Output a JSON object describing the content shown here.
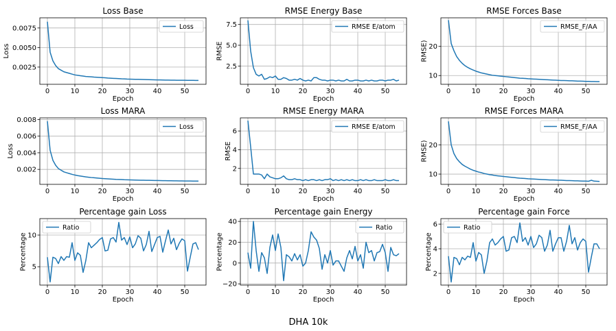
{
  "figure": {
    "suptitle": "DHA 10k"
  },
  "colors": {
    "line": "#1f77b4",
    "grid": "#b0b0b0",
    "axis": "#000000"
  },
  "chart_data": [
    {
      "type": "line",
      "title": "Loss Base",
      "xlabel": "Epoch",
      "ylabel": "Loss",
      "legend": "top-right",
      "series_name": "Loss",
      "xlim": [
        -2.75,
        57.75
      ],
      "ylim": [
        0.0003,
        0.0088
      ],
      "xticks": [
        0,
        10,
        20,
        30,
        40,
        50
      ],
      "xticklabels": [
        "0",
        "10",
        "20",
        "30",
        "40",
        "50"
      ],
      "yticks": [
        0.0025,
        0.005,
        0.0075
      ],
      "yticklabels": [
        "0.0025",
        "0.0050",
        "0.0075"
      ],
      "values": [
        0.0083,
        0.0044,
        0.0033,
        0.0027,
        0.0023,
        0.0021,
        0.0019,
        0.0018,
        0.0017,
        0.0016,
        0.0015,
        0.00145,
        0.0014,
        0.00135,
        0.0013,
        0.00128,
        0.00125,
        0.00122,
        0.0012,
        0.00118,
        0.00115,
        0.00113,
        0.0011,
        0.00108,
        0.00106,
        0.00104,
        0.00102,
        0.001,
        0.00099,
        0.00097,
        0.00096,
        0.00095,
        0.00094,
        0.00093,
        0.00092,
        0.00091,
        0.0009,
        0.00089,
        0.00088,
        0.00087,
        0.00086,
        0.00086,
        0.00085,
        0.00084,
        0.00084,
        0.00083,
        0.00083,
        0.00082,
        0.00082,
        0.00081,
        0.00081,
        0.0008,
        0.0008,
        0.0008,
        0.00079,
        0.00079
      ]
    },
    {
      "type": "line",
      "title": "RMSE Energy Base",
      "xlabel": "Epoch",
      "ylabel": "RMSE",
      "legend": "top-right",
      "series_name": "RMSE E/atom",
      "xlim": [
        -2.75,
        57.75
      ],
      "ylim": [
        0.3,
        8.3
      ],
      "xticks": [
        0,
        10,
        20,
        30,
        40,
        50
      ],
      "xticklabels": [
        "0",
        "10",
        "20",
        "30",
        "40",
        "50"
      ],
      "yticks": [
        2.5,
        5.0,
        7.5
      ],
      "yticklabels": [
        "2.5",
        "5.0",
        "7.5"
      ],
      "values": [
        8.0,
        4.3,
        2.3,
        1.5,
        1.3,
        1.5,
        0.9,
        1.0,
        1.2,
        1.1,
        1.3,
        0.9,
        0.9,
        1.1,
        1.0,
        0.8,
        0.8,
        0.9,
        0.8,
        1.0,
        0.8,
        0.7,
        0.8,
        0.7,
        1.1,
        1.1,
        0.9,
        0.8,
        0.8,
        0.7,
        0.8,
        0.8,
        0.7,
        0.8,
        0.7,
        0.7,
        0.9,
        0.7,
        0.7,
        0.8,
        0.8,
        0.7,
        0.7,
        0.8,
        0.7,
        0.8,
        0.7,
        0.7,
        0.8,
        0.8,
        0.7,
        0.8,
        0.8,
        0.9,
        0.7,
        0.8
      ]
    },
    {
      "type": "line",
      "title": "RMSE Forces Base",
      "xlabel": "Epoch",
      "ylabel": "RMSE)",
      "legend": "top-right",
      "series_name": "RMSE_F/AA",
      "xlim": [
        -2.75,
        57.75
      ],
      "ylim": [
        7.0,
        29.8
      ],
      "xticks": [
        0,
        10,
        20,
        30,
        40,
        50
      ],
      "xticklabels": [
        "0",
        "10",
        "20",
        "30",
        "40",
        "50"
      ],
      "yticks": [
        10,
        20
      ],
      "yticklabels": [
        "10",
        "20"
      ],
      "values": [
        29,
        21,
        18.5,
        16.5,
        15.2,
        14.2,
        13.4,
        12.8,
        12.3,
        11.9,
        11.5,
        11.2,
        10.9,
        10.7,
        10.5,
        10.3,
        10.1,
        10.0,
        9.9,
        9.8,
        9.7,
        9.6,
        9.5,
        9.4,
        9.3,
        9.2,
        9.1,
        9.05,
        9.0,
        8.9,
        8.85,
        8.8,
        8.75,
        8.7,
        8.65,
        8.6,
        8.55,
        8.5,
        8.45,
        8.4,
        8.35,
        8.3,
        8.3,
        8.25,
        8.2,
        8.2,
        8.15,
        8.1,
        8.1,
        8.05,
        8.0,
        8.0,
        7.95,
        7.95,
        7.9,
        7.9
      ]
    },
    {
      "type": "line",
      "title": "Loss MARA",
      "xlabel": "Epoch",
      "ylabel": "Loss",
      "legend": "top-right",
      "series_name": "Loss",
      "xlim": [
        -2.75,
        57.75
      ],
      "ylim": [
        0.0002,
        0.0082
      ],
      "xticks": [
        0,
        10,
        20,
        30,
        40,
        50
      ],
      "xticklabels": [
        "0",
        "10",
        "20",
        "30",
        "40",
        "50"
      ],
      "yticks": [
        0.002,
        0.004,
        0.006,
        0.008
      ],
      "yticklabels": [
        "0.002",
        "0.004",
        "0.006",
        "0.008"
      ],
      "values": [
        0.0078,
        0.0043,
        0.0031,
        0.0025,
        0.0021,
        0.0019,
        0.0017,
        0.0016,
        0.0015,
        0.0014,
        0.00132,
        0.00125,
        0.0012,
        0.00115,
        0.0011,
        0.00106,
        0.00102,
        0.00099,
        0.00096,
        0.00093,
        0.0009,
        0.00088,
        0.00086,
        0.00084,
        0.00082,
        0.0008,
        0.00079,
        0.00078,
        0.00076,
        0.00075,
        0.00074,
        0.00073,
        0.00072,
        0.00071,
        0.0007,
        0.00069,
        0.00068,
        0.00068,
        0.00067,
        0.00066,
        0.00066,
        0.00065,
        0.00064,
        0.00064,
        0.00063,
        0.00063,
        0.00062,
        0.00062,
        0.00061,
        0.00061,
        0.0006,
        0.0006,
        0.0006,
        0.00059,
        0.00059,
        0.00059
      ]
    },
    {
      "type": "line",
      "title": "RMSE Energy MARA",
      "xlabel": "Epoch",
      "ylabel": "RMSE",
      "legend": "top-right",
      "series_name": "RMSE E/atom",
      "xlim": [
        -2.75,
        57.75
      ],
      "ylim": [
        0.3,
        7.4
      ],
      "xticks": [
        0,
        10,
        20,
        30,
        40,
        50
      ],
      "xticklabels": [
        "0",
        "10",
        "20",
        "30",
        "40",
        "50"
      ],
      "yticks": [
        2,
        4,
        6
      ],
      "yticklabels": [
        "2",
        "4",
        "6"
      ],
      "values": [
        7.1,
        4.3,
        1.4,
        1.4,
        1.4,
        1.3,
        0.9,
        1.4,
        1.1,
        1.0,
        0.9,
        0.9,
        1.0,
        1.2,
        0.9,
        0.8,
        0.8,
        0.9,
        0.8,
        0.8,
        0.7,
        0.8,
        0.7,
        0.8,
        0.8,
        0.7,
        0.8,
        0.7,
        0.8,
        0.8,
        0.9,
        0.7,
        0.8,
        0.7,
        0.8,
        0.7,
        0.8,
        0.7,
        0.8,
        0.7,
        0.7,
        0.8,
        0.7,
        0.8,
        0.7,
        0.7,
        0.8,
        0.7,
        0.7,
        0.7,
        0.8,
        0.7,
        0.7,
        0.8,
        0.7,
        0.7
      ]
    },
    {
      "type": "line",
      "title": "RMSE Forces MARA",
      "xlabel": "Epoch",
      "ylabel": "RMSE)",
      "legend": "top-right",
      "series_name": "RMSE_F/AA",
      "xlim": [
        -2.75,
        57.75
      ],
      "ylim": [
        6.5,
        29.2
      ],
      "xticks": [
        0,
        10,
        20,
        30,
        40,
        50
      ],
      "xticklabels": [
        "0",
        "10",
        "20",
        "30",
        "40",
        "50"
      ],
      "yticks": [
        10,
        20
      ],
      "yticklabels": [
        "10",
        "20"
      ],
      "values": [
        28,
        20,
        17,
        15.3,
        14.2,
        13.3,
        12.7,
        12.2,
        11.7,
        11.3,
        11.0,
        10.7,
        10.5,
        10.2,
        10.0,
        9.8,
        9.7,
        9.5,
        9.4,
        9.3,
        9.2,
        9.1,
        9.0,
        8.9,
        8.8,
        8.7,
        8.6,
        8.55,
        8.5,
        8.4,
        8.35,
        8.3,
        8.25,
        8.2,
        8.15,
        8.1,
        8.05,
        8.0,
        8.0,
        7.95,
        7.9,
        7.9,
        7.85,
        7.8,
        7.8,
        7.75,
        7.7,
        7.7,
        7.65,
        7.6,
        7.6,
        7.55,
        7.9,
        7.6,
        7.55,
        7.5
      ]
    },
    {
      "type": "line",
      "title": "Percentage gain Loss",
      "xlabel": "Epoch",
      "ylabel": "Percentage",
      "legend": "top-left",
      "series_name": "Ratio",
      "xlim": [
        -2.75,
        57.75
      ],
      "ylim": [
        2.1,
        12.6
      ],
      "xticks": [
        0,
        10,
        20,
        30,
        40,
        50
      ],
      "xticklabels": [
        "0",
        "10",
        "20",
        "30",
        "40",
        "50"
      ],
      "yticks": [
        5,
        10
      ],
      "yticklabels": [
        "5",
        "10"
      ],
      "values": [
        6.5,
        2.6,
        6.5,
        6.3,
        5.5,
        6.6,
        6.0,
        6.6,
        6.5,
        8.8,
        6.0,
        7.2,
        6.8,
        4.1,
        6.0,
        8.8,
        8.0,
        8.4,
        8.8,
        9.3,
        9.6,
        7.5,
        7.6,
        9.4,
        9.6,
        8.9,
        12.0,
        9.2,
        9.6,
        8.5,
        9.7,
        8.0,
        8.6,
        9.9,
        9.5,
        7.5,
        8.5,
        10.6,
        7.4,
        8.5,
        9.6,
        9.8,
        7.3,
        9.1,
        10.8,
        8.6,
        9.5,
        7.7,
        8.7,
        9.4,
        9.1,
        4.3,
        6.5,
        8.6,
        8.8,
        7.7
      ]
    },
    {
      "type": "line",
      "title": "Percentage gain Energy",
      "xlabel": "Epoch",
      "ylabel": "Percentage",
      "legend": "top-right",
      "series_name": "Ratio",
      "xlim": [
        -2.75,
        57.75
      ],
      "ylim": [
        -21.2,
        42.7
      ],
      "xticks": [
        0,
        10,
        20,
        30,
        40,
        50
      ],
      "xticklabels": [
        "0",
        "10",
        "20",
        "30",
        "40",
        "50"
      ],
      "yticks": [
        -20,
        0,
        20,
        40
      ],
      "yticklabels": [
        "−20",
        "0",
        "20",
        "40"
      ],
      "values": [
        10,
        -5,
        40,
        12,
        -8,
        10,
        5,
        -10,
        15,
        27,
        12,
        28,
        15,
        -17,
        8,
        6,
        2,
        9,
        3,
        8,
        -3,
        0,
        12,
        30,
        25,
        22,
        14,
        -6,
        8,
        0,
        12,
        -2,
        2,
        2,
        -3,
        -8,
        5,
        12,
        4,
        16,
        2,
        8,
        -5,
        20,
        10,
        12,
        2,
        10,
        11,
        18,
        10,
        -8,
        15,
        8,
        7,
        9
      ]
    },
    {
      "type": "line",
      "title": "Percentage gain Force",
      "xlabel": "Epoch",
      "ylabel": "Percentage",
      "legend": "top-left",
      "series_name": "Ratio",
      "xlim": [
        -2.75,
        57.75
      ],
      "ylim": [
        1.05,
        6.45
      ],
      "xticks": [
        0,
        10,
        20,
        30,
        40,
        50
      ],
      "xticklabels": [
        "0",
        "10",
        "20",
        "30",
        "40",
        "50"
      ],
      "yticks": [
        2,
        4,
        6
      ],
      "yticklabels": [
        "2",
        "4",
        "6"
      ],
      "values": [
        3.4,
        1.3,
        3.3,
        3.2,
        2.7,
        3.3,
        3.1,
        3.4,
        3.3,
        4.5,
        3.0,
        3.7,
        3.5,
        2.0,
        3.0,
        4.5,
        4.8,
        4.3,
        4.5,
        4.8,
        5.0,
        3.8,
        3.9,
        4.9,
        5.0,
        4.5,
        6.1,
        4.6,
        4.9,
        4.3,
        5.0,
        4.1,
        4.4,
        5.1,
        4.9,
        3.8,
        4.3,
        5.5,
        3.8,
        4.4,
        4.9,
        4.9,
        3.8,
        4.6,
        5.9,
        4.4,
        4.9,
        3.9,
        4.5,
        4.8,
        4.6,
        2.1,
        3.3,
        4.4,
        4.4,
        4.0
      ]
    }
  ]
}
